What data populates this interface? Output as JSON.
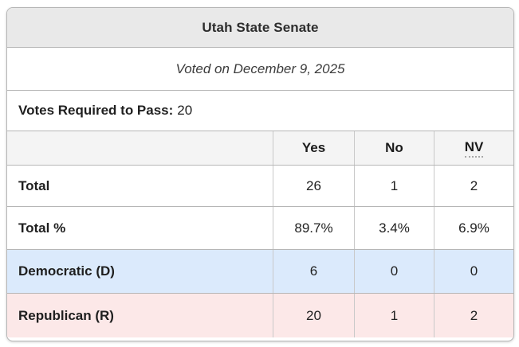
{
  "chart_data": {
    "type": "table",
    "title": "Utah State Senate",
    "subtitle": "Voted on December 9, 2025",
    "votes_required_to_pass": 20,
    "columns": [
      "Yes",
      "No",
      "NV"
    ],
    "rows": [
      {
        "label": "Total",
        "values": [
          "26",
          "1",
          "2"
        ]
      },
      {
        "label": "Total %",
        "values": [
          "89.7%",
          "3.4%",
          "6.9%"
        ]
      },
      {
        "label": "Democratic (D)",
        "values": [
          "6",
          "0",
          "0"
        ],
        "highlight": "democratic"
      },
      {
        "label": "Republican (R)",
        "values": [
          "20",
          "1",
          "2"
        ],
        "highlight": "republican"
      }
    ]
  },
  "labels": {
    "votes_required": "Votes Required to Pass:",
    "votes_required_value": "20"
  },
  "colors": {
    "title_bar_bg": "#e9e9e9",
    "column_header_bg": "#f4f4f4",
    "democratic_row_bg": "#dbeafc",
    "republican_row_bg": "#fce8e8"
  }
}
